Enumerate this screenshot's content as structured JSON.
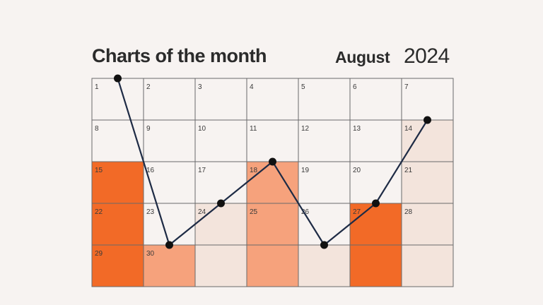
{
  "header": {
    "title": "Charts of the month",
    "month": "August",
    "year": "2024"
  },
  "colors": {
    "background": "#f7f3f1",
    "grid_line": "#6a6a6a",
    "line": "#1e2b45",
    "marker": "#111111",
    "level_1": "#f3e4dc",
    "level_2": "#f6a27c",
    "level_3": "#f26a27"
  },
  "chart_data": {
    "type": "line",
    "calendar": {
      "columns": 7,
      "rows": 5,
      "days": [
        1,
        2,
        3,
        4,
        5,
        6,
        7,
        8,
        9,
        10,
        11,
        12,
        13,
        14,
        15,
        16,
        17,
        18,
        19,
        20,
        21,
        22,
        23,
        24,
        25,
        26,
        27,
        28,
        29,
        30
      ]
    },
    "x": [
      1,
      2,
      3,
      4,
      5,
      6,
      7
    ],
    "values": [
      5,
      1,
      2,
      3,
      1,
      2,
      4
    ],
    "ylim": [
      0,
      5
    ],
    "column_shading": [
      {
        "column": 1,
        "from_row": 3,
        "level": 3
      },
      {
        "column": 2,
        "from_row": 5,
        "level": 2
      },
      {
        "column": 3,
        "from_row": 4,
        "level": 1
      },
      {
        "column": 4,
        "from_row": 3,
        "level": 2
      },
      {
        "column": 5,
        "from_row": 5,
        "level": 1
      },
      {
        "column": 6,
        "from_row": 4,
        "level": 3
      },
      {
        "column": 7,
        "from_row": 2,
        "level": 1
      }
    ]
  }
}
